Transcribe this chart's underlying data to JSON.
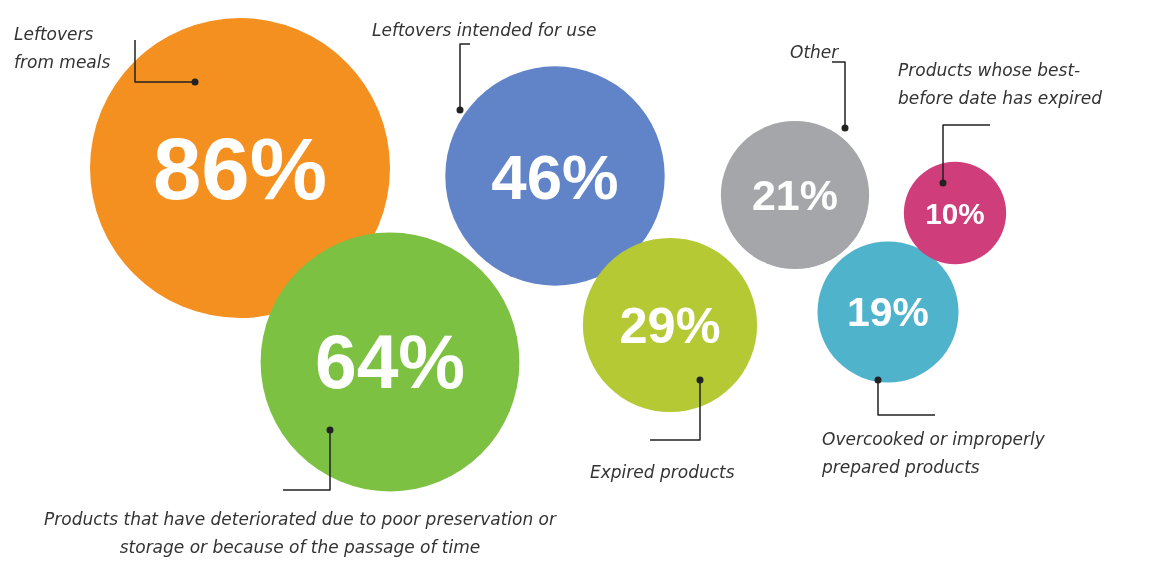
{
  "chart_data": {
    "type": "other",
    "categories": [
      "Leftovers from meals",
      "Products that have deteriorated due to poor preservation or storage or because of the passage of time",
      "Leftovers intended for use",
      "Expired products",
      "Other",
      "Overcooked or improperly prepared products",
      "Products whose best-before date has expired"
    ],
    "values": [
      86,
      64,
      46,
      29,
      21,
      19,
      10
    ],
    "value_labels": [
      "86%",
      "64%",
      "46%",
      "29%",
      "21%",
      "19%",
      "10%"
    ],
    "colors": [
      "#f39020",
      "#7dc142",
      "#6184c8",
      "#b5c935",
      "#a4a6a9",
      "#4fb3cc",
      "#cf3d7b"
    ]
  }
}
